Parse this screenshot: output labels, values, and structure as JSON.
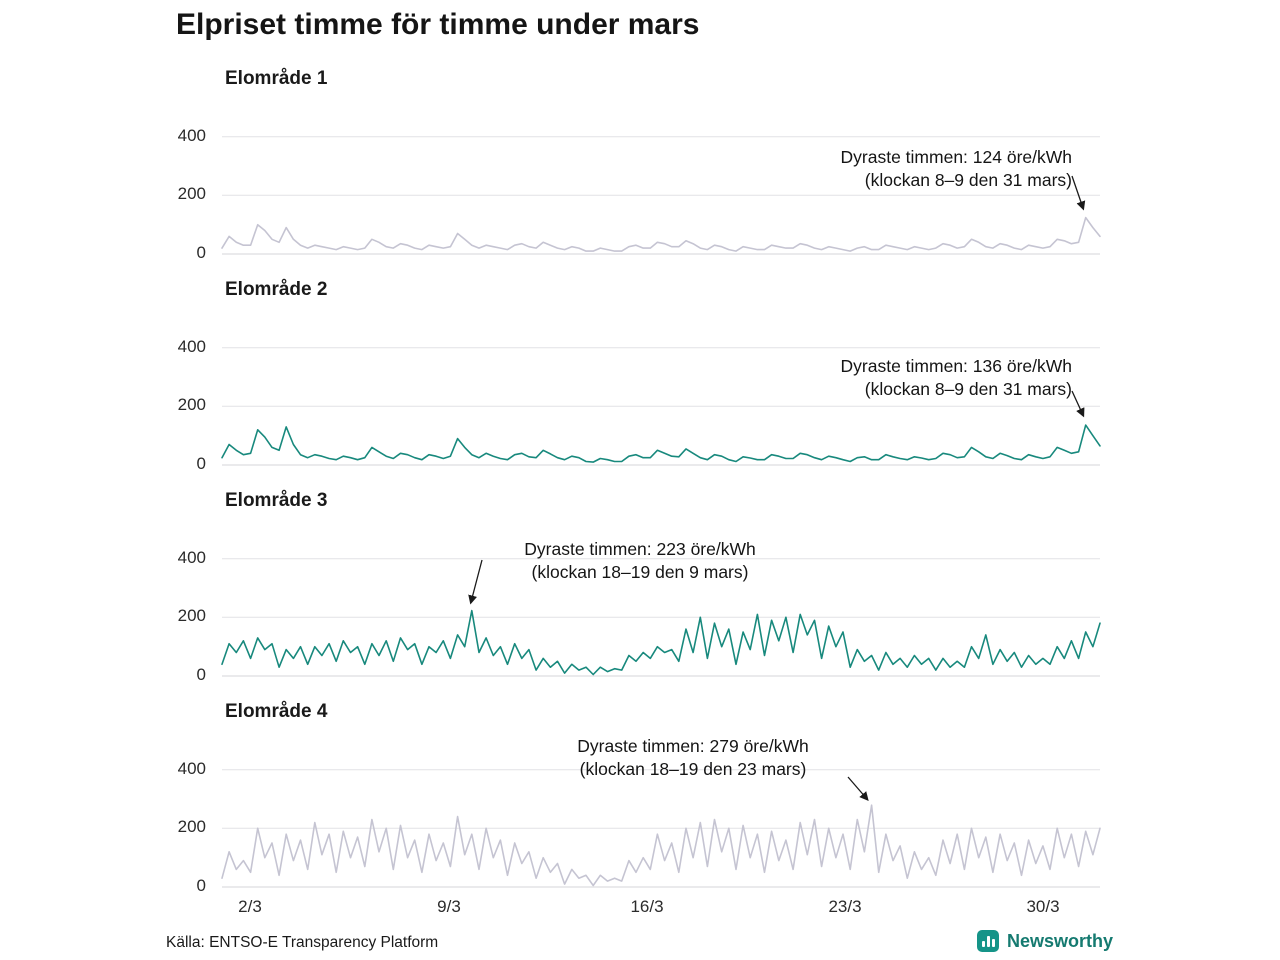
{
  "title": "Elpriset timme för timme under mars",
  "source": "Källa: ENTSO-E Transparency Platform",
  "brand": {
    "name": "Newsworthy",
    "color": "#157a70"
  },
  "axis": {
    "y_tick_labels": [
      "400",
      "200",
      "0"
    ],
    "x_ticks": [
      "2/3",
      "9/3",
      "16/3",
      "23/3",
      "30/3"
    ]
  },
  "chart_data": [
    {
      "type": "line",
      "name": "Elområde 1",
      "color": "#c5c4d2",
      "ylim": [
        0,
        450
      ],
      "peak_value": 124,
      "annotation": {
        "line1": "Dyraste timmen: 124 öre/kWh",
        "line2": "(klockan 8–9 den 31 mars)"
      },
      "values": [
        20,
        60,
        40,
        30,
        30,
        100,
        80,
        50,
        40,
        90,
        50,
        30,
        20,
        30,
        25,
        20,
        15,
        25,
        20,
        15,
        20,
        50,
        40,
        25,
        20,
        35,
        30,
        20,
        15,
        30,
        25,
        20,
        25,
        70,
        50,
        30,
        20,
        30,
        25,
        20,
        15,
        30,
        35,
        25,
        20,
        40,
        30,
        20,
        15,
        25,
        20,
        10,
        10,
        20,
        15,
        10,
        10,
        25,
        30,
        20,
        20,
        40,
        35,
        25,
        25,
        45,
        35,
        20,
        15,
        30,
        25,
        15,
        10,
        25,
        20,
        15,
        15,
        30,
        25,
        20,
        20,
        35,
        30,
        20,
        15,
        25,
        20,
        15,
        10,
        20,
        25,
        15,
        15,
        30,
        25,
        20,
        15,
        25,
        20,
        15,
        20,
        35,
        30,
        20,
        25,
        50,
        40,
        25,
        20,
        35,
        30,
        20,
        15,
        30,
        25,
        20,
        25,
        50,
        45,
        35,
        40,
        124,
        90,
        60
      ]
    },
    {
      "type": "line",
      "name": "Elområde 2",
      "color": "#18897d",
      "ylim": [
        0,
        450
      ],
      "peak_value": 136,
      "annotation": {
        "line1": "Dyraste timmen: 136 öre/kWh",
        "line2": "(klockan 8–9 den 31 mars)"
      },
      "values": [
        25,
        70,
        50,
        35,
        40,
        120,
        95,
        60,
        50,
        130,
        70,
        35,
        25,
        35,
        30,
        22,
        18,
        30,
        25,
        18,
        25,
        60,
        45,
        30,
        22,
        40,
        35,
        25,
        18,
        35,
        30,
        22,
        30,
        90,
        60,
        35,
        25,
        40,
        30,
        22,
        18,
        35,
        40,
        28,
        25,
        50,
        38,
        25,
        18,
        30,
        25,
        12,
        10,
        22,
        18,
        12,
        12,
        30,
        35,
        25,
        25,
        50,
        40,
        30,
        28,
        55,
        40,
        25,
        18,
        35,
        30,
        18,
        12,
        28,
        24,
        18,
        18,
        35,
        30,
        22,
        22,
        40,
        35,
        25,
        18,
        30,
        25,
        18,
        12,
        25,
        28,
        18,
        18,
        35,
        28,
        22,
        18,
        28,
        24,
        18,
        22,
        40,
        35,
        25,
        28,
        60,
        45,
        28,
        22,
        40,
        32,
        22,
        18,
        35,
        28,
        22,
        28,
        60,
        50,
        40,
        45,
        136,
        100,
        65
      ]
    },
    {
      "type": "line",
      "name": "Elområde 3",
      "color": "#18897d",
      "ylim": [
        0,
        450
      ],
      "peak_value": 223,
      "annotation": {
        "line1": "Dyraste timmen: 223 öre/kWh",
        "line2": "(klockan 18–19 den 9 mars)"
      },
      "values": [
        40,
        110,
        80,
        120,
        60,
        130,
        90,
        110,
        30,
        90,
        60,
        100,
        40,
        100,
        70,
        110,
        50,
        120,
        80,
        100,
        40,
        110,
        70,
        120,
        50,
        130,
        90,
        110,
        40,
        100,
        80,
        120,
        60,
        140,
        100,
        223,
        80,
        130,
        70,
        100,
        40,
        110,
        60,
        90,
        20,
        60,
        30,
        50,
        10,
        40,
        20,
        30,
        5,
        30,
        15,
        25,
        20,
        70,
        50,
        80,
        60,
        100,
        80,
        90,
        50,
        160,
        80,
        200,
        60,
        180,
        100,
        160,
        40,
        150,
        90,
        210,
        70,
        190,
        120,
        200,
        80,
        210,
        140,
        190,
        60,
        170,
        100,
        150,
        30,
        90,
        50,
        70,
        20,
        80,
        40,
        60,
        30,
        70,
        40,
        60,
        20,
        60,
        30,
        50,
        30,
        100,
        60,
        140,
        40,
        90,
        50,
        80,
        30,
        70,
        40,
        60,
        40,
        100,
        60,
        120,
        60,
        150,
        100,
        180
      ]
    },
    {
      "type": "line",
      "name": "Elområde 4",
      "color": "#c5c4d2",
      "ylim": [
        0,
        450
      ],
      "peak_value": 279,
      "annotation": {
        "line1": "Dyraste timmen: 279 öre/kWh",
        "line2": "(klockan 18–19 den 23 mars)"
      },
      "values": [
        30,
        120,
        60,
        90,
        50,
        200,
        100,
        150,
        40,
        180,
        90,
        160,
        60,
        220,
        110,
        180,
        50,
        190,
        100,
        170,
        70,
        230,
        120,
        200,
        60,
        210,
        100,
        160,
        50,
        180,
        90,
        150,
        70,
        240,
        110,
        180,
        60,
        200,
        100,
        160,
        40,
        150,
        80,
        120,
        30,
        100,
        50,
        80,
        10,
        60,
        30,
        40,
        5,
        40,
        20,
        30,
        20,
        90,
        50,
        100,
        60,
        180,
        90,
        150,
        50,
        200,
        100,
        220,
        70,
        230,
        120,
        200,
        60,
        210,
        100,
        180,
        50,
        190,
        90,
        160,
        60,
        220,
        110,
        230,
        70,
        200,
        100,
        180,
        60,
        230,
        120,
        279,
        50,
        180,
        90,
        140,
        30,
        120,
        60,
        100,
        40,
        160,
        80,
        180,
        60,
        200,
        100,
        170,
        50,
        180,
        90,
        150,
        40,
        160,
        80,
        140,
        60,
        200,
        100,
        180,
        70,
        190,
        110,
        200
      ]
    }
  ]
}
